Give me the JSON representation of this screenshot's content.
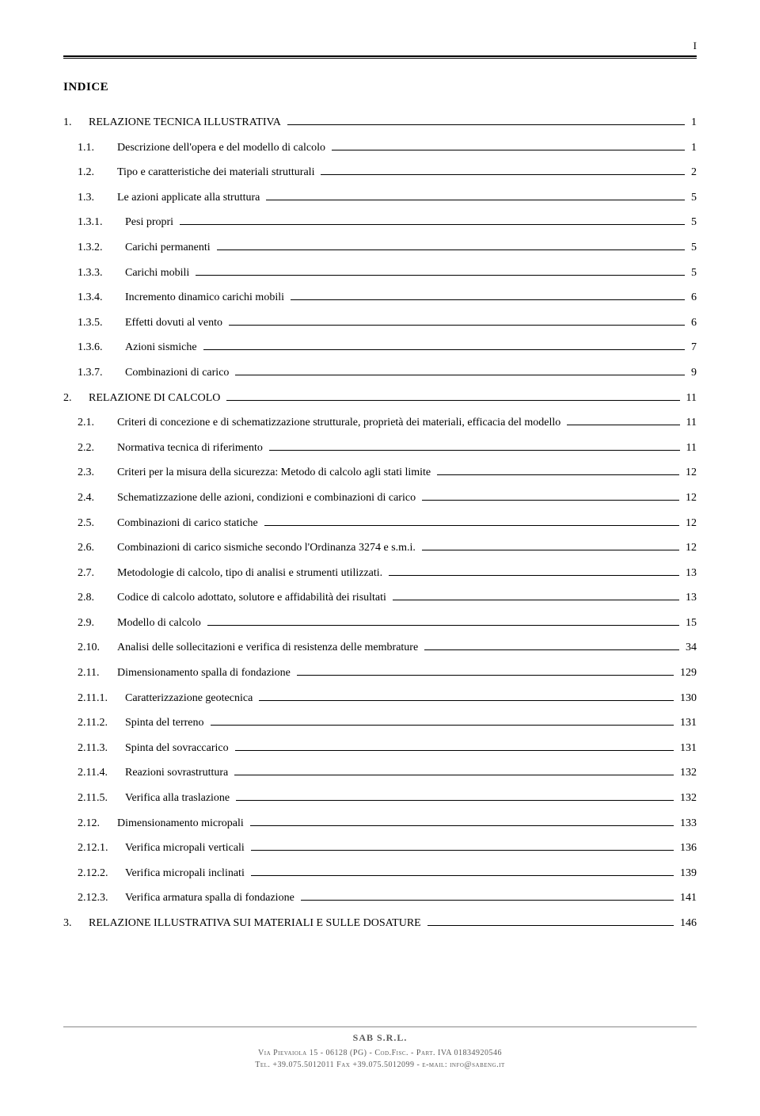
{
  "page_number": "I",
  "title": "INDICE",
  "toc": [
    {
      "num": "1.",
      "indent": 0,
      "text": "RELAZIONE TECNICA ILLUSTRATIVA",
      "page": "1"
    },
    {
      "num": "1.1.",
      "indent": 1,
      "text": "Descrizione dell'opera e del modello di calcolo",
      "page": "1"
    },
    {
      "num": "1.2.",
      "indent": 1,
      "text": "Tipo e caratteristiche dei materiali strutturali",
      "page": "2"
    },
    {
      "num": "1.3.",
      "indent": 1,
      "text": "Le azioni applicate alla struttura",
      "page": "5"
    },
    {
      "num": "1.3.1.",
      "indent": 2,
      "text": "Pesi propri",
      "page": "5"
    },
    {
      "num": "1.3.2.",
      "indent": 2,
      "text": "Carichi permanenti",
      "page": "5"
    },
    {
      "num": "1.3.3.",
      "indent": 2,
      "text": "Carichi mobili",
      "page": "5"
    },
    {
      "num": "1.3.4.",
      "indent": 2,
      "text": "Incremento dinamico carichi mobili",
      "page": "6"
    },
    {
      "num": "1.3.5.",
      "indent": 2,
      "text": "Effetti dovuti al vento",
      "page": "6"
    },
    {
      "num": "1.3.6.",
      "indent": 2,
      "text": "Azioni sismiche",
      "page": "7"
    },
    {
      "num": "1.3.7.",
      "indent": 2,
      "text": "Combinazioni di carico",
      "page": "9"
    },
    {
      "num": "2.",
      "indent": 0,
      "text": "RELAZIONE DI CALCOLO",
      "page": "11"
    },
    {
      "num": "2.1.",
      "indent": 1,
      "text": "Criteri di concezione e di schematizzazione strutturale, proprietà dei materiali, efficacia del modello",
      "page": "11"
    },
    {
      "num": "2.2.",
      "indent": 1,
      "text": "Normativa tecnica di riferimento",
      "page": "11"
    },
    {
      "num": "2.3.",
      "indent": 1,
      "text": "Criteri per la misura della sicurezza: Metodo di calcolo agli stati limite",
      "page": "12"
    },
    {
      "num": "2.4.",
      "indent": 1,
      "text": "Schematizzazione delle azioni, condizioni e combinazioni di carico",
      "page": "12"
    },
    {
      "num": "2.5.",
      "indent": 1,
      "text": "Combinazioni di carico statiche",
      "page": "12"
    },
    {
      "num": "2.6.",
      "indent": 1,
      "text": "Combinazioni di carico sismiche secondo l'Ordinanza 3274 e s.m.i.",
      "page": "12"
    },
    {
      "num": "2.7.",
      "indent": 1,
      "text": "Metodologie di calcolo, tipo di analisi e strumenti utilizzati.",
      "page": "13"
    },
    {
      "num": "2.8.",
      "indent": 1,
      "text": "Codice di calcolo adottato, solutore e affidabilità dei risultati",
      "page": "13"
    },
    {
      "num": "2.9.",
      "indent": 1,
      "text": "Modello di calcolo",
      "page": "15"
    },
    {
      "num": "2.10.",
      "indent": 1,
      "text": "Analisi delle sollecitazioni e verifica di resistenza delle membrature",
      "page": "34"
    },
    {
      "num": "2.11.",
      "indent": 1,
      "text": "Dimensionamento spalla di fondazione",
      "page": "129"
    },
    {
      "num": "2.11.1.",
      "indent": 2,
      "text": "Caratterizzazione geotecnica",
      "page": "130"
    },
    {
      "num": "2.11.2.",
      "indent": 2,
      "text": "Spinta del terreno",
      "page": "131"
    },
    {
      "num": "2.11.3.",
      "indent": 2,
      "text": "Spinta del sovraccarico",
      "page": "131"
    },
    {
      "num": "2.11.4.",
      "indent": 2,
      "text": "Reazioni sovrastruttura",
      "page": "132"
    },
    {
      "num": "2.11.5.",
      "indent": 2,
      "text": "Verifica alla traslazione",
      "page": "132"
    },
    {
      "num": "2.12.",
      "indent": 1,
      "text": "Dimensionamento micropali",
      "page": "133"
    },
    {
      "num": "2.12.1.",
      "indent": 2,
      "text": "Verifica micropali verticali",
      "page": "136"
    },
    {
      "num": "2.12.2.",
      "indent": 2,
      "text": "Verifica micropali inclinati",
      "page": "139"
    },
    {
      "num": "2.12.3.",
      "indent": 2,
      "text": "Verifica armatura spalla di fondazione",
      "page": "141"
    },
    {
      "num": "3.",
      "indent": 0,
      "text": "RELAZIONE ILLUSTRATIVA SUI MATERIALI E SULLE DOSATURE",
      "page": "146"
    }
  ],
  "footer": {
    "company": "SAB S.R.L.",
    "line1": "Via Pievaiola 15 - 06128 (PG) - Cod.Fisc. - Part. IVA 01834920546",
    "line2": "Tel. +39.075.5012011 Fax +39.075.5012099 - e-mail: info@sabeng.it"
  },
  "num_width": {
    "0": "32px",
    "1": "50px",
    "2": "60px"
  }
}
